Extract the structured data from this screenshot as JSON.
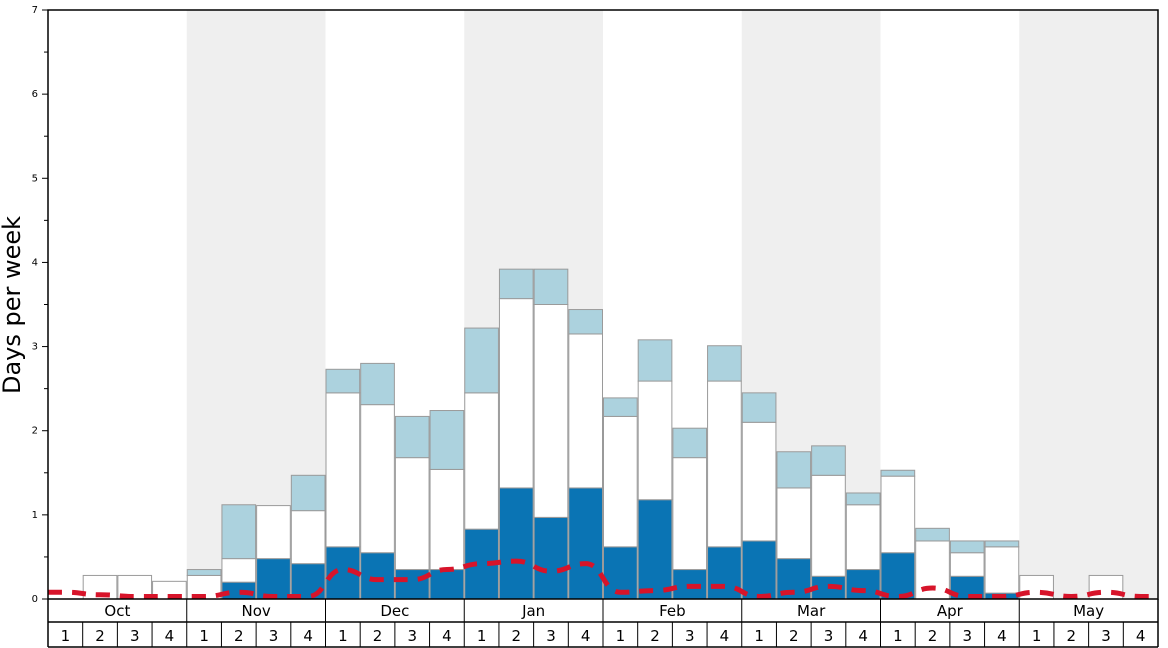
{
  "chart_data": {
    "type": "bar",
    "ylabel": "Days per week",
    "ylim": [
      0,
      7
    ],
    "y_ticks": [
      "0",
      "1",
      "2",
      "3",
      "4",
      "5",
      "6",
      "7"
    ],
    "months": [
      "Oct",
      "Nov",
      "Dec",
      "Jan",
      "Feb",
      "Mar",
      "Apr",
      "May"
    ],
    "weeks": [
      "1",
      "2",
      "3",
      "4"
    ],
    "shaded_months": [
      "Nov",
      "Jan",
      "Mar",
      "May"
    ],
    "grid": false,
    "legend": "none",
    "colors": {
      "dark_blue": "#0a74b4",
      "white": "#ffffff",
      "light_blue": "#acd2de",
      "dashed_line": "#d7142a",
      "shade": "#efefef"
    },
    "series": [
      {
        "key": "dark",
        "values": [
          0,
          0,
          0,
          0,
          0,
          0.2,
          0.48,
          0.42,
          0.62,
          0.55,
          0.35,
          0.35,
          0.83,
          1.32,
          0.97,
          1.32,
          0.62,
          1.18,
          0.35,
          0.62,
          0.69,
          0.48,
          0.27,
          0.35,
          0.55,
          0,
          0.27,
          0.07,
          0,
          0,
          0,
          0
        ]
      },
      {
        "key": "white",
        "values": [
          0,
          0.28,
          0.28,
          0.21,
          0.28,
          0.28,
          0.63,
          0.63,
          1.83,
          1.76,
          1.33,
          1.19,
          1.62,
          2.25,
          2.53,
          1.83,
          1.55,
          1.41,
          1.33,
          1.97,
          1.41,
          0.84,
          1.2,
          0.77,
          0.91,
          0.69,
          0.28,
          0.55,
          0.28,
          0,
          0.28,
          0
        ]
      },
      {
        "key": "light",
        "values": [
          0,
          0,
          0,
          0,
          0.07,
          0.64,
          0,
          0.42,
          0.28,
          0.49,
          0.49,
          0.7,
          0.77,
          0.35,
          0.42,
          0.29,
          0.22,
          0.49,
          0.35,
          0.42,
          0.35,
          0.43,
          0.35,
          0.14,
          0.07,
          0.15,
          0.14,
          0.07,
          0,
          0,
          0,
          0
        ]
      }
    ],
    "line": {
      "style": "dashed",
      "values": [
        0.08,
        0.05,
        0.03,
        0.03,
        0.03,
        0.08,
        0.03,
        0.03,
        0.35,
        0.23,
        0.23,
        0.35,
        0.42,
        0.45,
        0.33,
        0.42,
        0.08,
        0.1,
        0.15,
        0.15,
        0.03,
        0.08,
        0.15,
        0.1,
        0.03,
        0.13,
        0.03,
        0.03,
        0.08,
        0.03,
        0.08,
        0.03
      ]
    }
  }
}
